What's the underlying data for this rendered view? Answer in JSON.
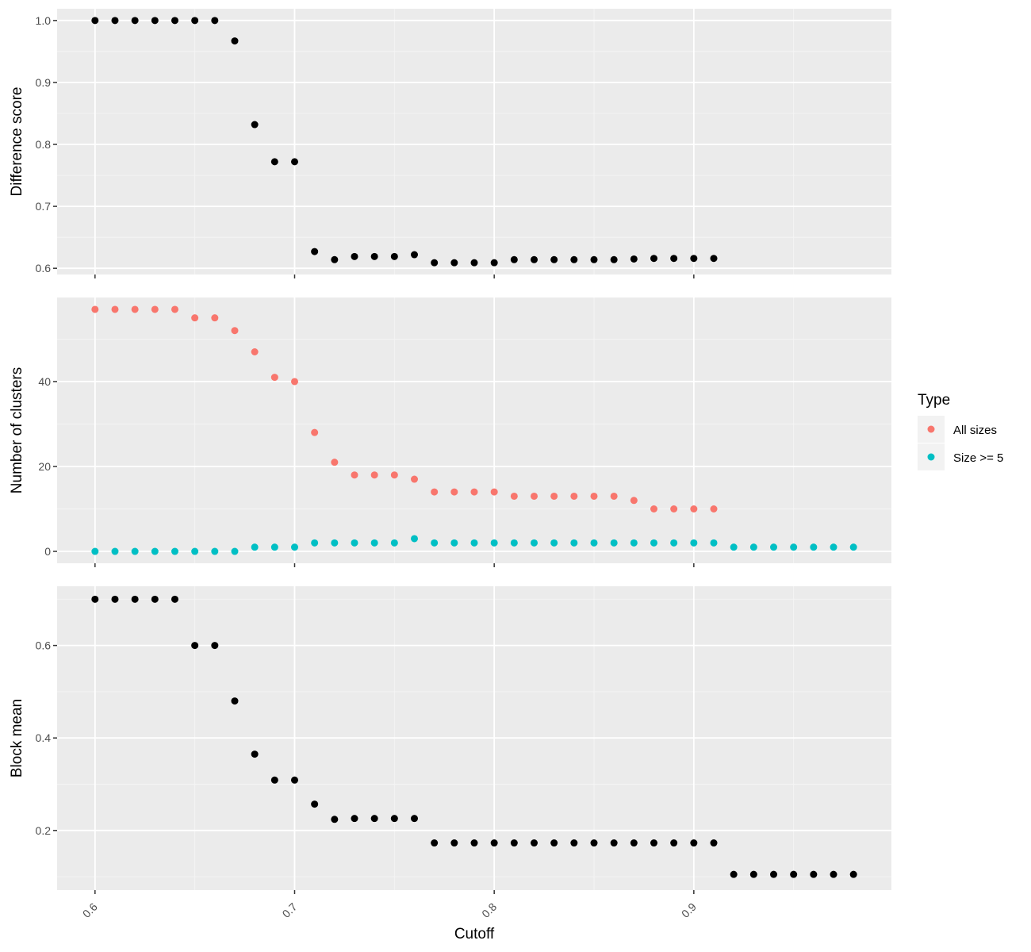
{
  "chart_data": [
    {
      "type": "scatter",
      "ylabel": "Difference score",
      "xlim": [
        0.581,
        0.999
      ],
      "ylim": [
        0.59,
        1.019
      ],
      "yticks": [
        0.6,
        0.7,
        0.8,
        0.9,
        1.0
      ],
      "ytick_labels": [
        "0.6",
        "0.7",
        "0.8",
        "0.9",
        "1.0"
      ],
      "series": [
        {
          "color": "#000000",
          "x": [
            0.6,
            0.61,
            0.62,
            0.63,
            0.64,
            0.65,
            0.66,
            0.67,
            0.68,
            0.69,
            0.7,
            0.71,
            0.72,
            0.73,
            0.74,
            0.75,
            0.76,
            0.77,
            0.78,
            0.79,
            0.8,
            0.81,
            0.82,
            0.83,
            0.84,
            0.85,
            0.86,
            0.87,
            0.88,
            0.89,
            0.9,
            0.91
          ],
          "y": [
            1.0,
            1.0,
            1.0,
            1.0,
            1.0,
            1.0,
            1.0,
            0.967,
            0.832,
            0.772,
            0.772,
            0.627,
            0.614,
            0.619,
            0.619,
            0.619,
            0.622,
            0.609,
            0.609,
            0.609,
            0.609,
            0.614,
            0.614,
            0.614,
            0.614,
            0.614,
            0.614,
            0.615,
            0.616,
            0.616,
            0.616,
            0.616
          ]
        }
      ]
    },
    {
      "type": "scatter",
      "ylabel": "Number of clusters",
      "xlim": [
        0.581,
        0.999
      ],
      "ylim": [
        -2.8,
        59.8
      ],
      "yticks": [
        0,
        20,
        40
      ],
      "ytick_labels": [
        "0",
        "20",
        "40"
      ],
      "legend": {
        "title": "Type",
        "position": "right"
      },
      "series": [
        {
          "name": "All sizes",
          "color": "#F8766D",
          "x": [
            0.6,
            0.61,
            0.62,
            0.63,
            0.64,
            0.65,
            0.66,
            0.67,
            0.68,
            0.69,
            0.7,
            0.71,
            0.72,
            0.73,
            0.74,
            0.75,
            0.76,
            0.77,
            0.78,
            0.79,
            0.8,
            0.81,
            0.82,
            0.83,
            0.84,
            0.85,
            0.86,
            0.87,
            0.88,
            0.89,
            0.9,
            0.91
          ],
          "y": [
            57,
            57,
            57,
            57,
            57,
            55,
            55,
            52,
            47,
            41,
            40,
            28,
            21,
            18,
            18,
            18,
            17,
            14,
            14,
            14,
            14,
            13,
            13,
            13,
            13,
            13,
            13,
            12,
            10,
            10,
            10,
            10
          ]
        },
        {
          "name": "Size >= 5",
          "color": "#00BFC4",
          "x": [
            0.6,
            0.61,
            0.62,
            0.63,
            0.64,
            0.65,
            0.66,
            0.67,
            0.68,
            0.69,
            0.7,
            0.71,
            0.72,
            0.73,
            0.74,
            0.75,
            0.76,
            0.77,
            0.78,
            0.79,
            0.8,
            0.81,
            0.82,
            0.83,
            0.84,
            0.85,
            0.86,
            0.87,
            0.88,
            0.89,
            0.9,
            0.91,
            0.92,
            0.93,
            0.94,
            0.95,
            0.96,
            0.97,
            0.98
          ],
          "y": [
            0,
            0,
            0,
            0,
            0,
            0,
            0,
            0,
            1,
            1,
            1,
            2,
            2,
            2,
            2,
            2,
            3,
            2,
            2,
            2,
            2,
            2,
            2,
            2,
            2,
            2,
            2,
            2,
            2,
            2,
            2,
            2,
            1,
            1,
            1,
            1,
            1,
            1,
            1
          ]
        }
      ]
    },
    {
      "type": "scatter",
      "ylabel": "Block mean",
      "xlabel": "Cutoff",
      "xlim": [
        0.581,
        0.999
      ],
      "ylim": [
        0.071,
        0.728
      ],
      "yticks": [
        0.2,
        0.4,
        0.6
      ],
      "ytick_labels": [
        "0.2",
        "0.4",
        "0.6"
      ],
      "xticks": [
        0.6,
        0.7,
        0.8,
        0.9
      ],
      "xtick_labels": [
        "0.6",
        "0.7",
        "0.8",
        "0.9"
      ],
      "series": [
        {
          "color": "#000000",
          "x": [
            0.6,
            0.61,
            0.62,
            0.63,
            0.64,
            0.65,
            0.66,
            0.67,
            0.68,
            0.69,
            0.7,
            0.71,
            0.72,
            0.73,
            0.74,
            0.75,
            0.76,
            0.77,
            0.78,
            0.79,
            0.8,
            0.81,
            0.82,
            0.83,
            0.84,
            0.85,
            0.86,
            0.87,
            0.88,
            0.89,
            0.9,
            0.91,
            0.92,
            0.93,
            0.94,
            0.95,
            0.96,
            0.97,
            0.98
          ],
          "y": [
            0.7,
            0.7,
            0.7,
            0.7,
            0.7,
            0.6,
            0.6,
            0.48,
            0.365,
            0.309,
            0.309,
            0.257,
            0.224,
            0.226,
            0.226,
            0.226,
            0.226,
            0.173,
            0.173,
            0.173,
            0.173,
            0.173,
            0.173,
            0.173,
            0.173,
            0.173,
            0.173,
            0.173,
            0.173,
            0.173,
            0.173,
            0.173,
            0.105,
            0.105,
            0.105,
            0.105,
            0.105,
            0.105,
            0.105
          ]
        }
      ]
    }
  ],
  "x_title": "Cutoff",
  "legend": {
    "title": "Type",
    "items": [
      {
        "label": "All sizes",
        "color": "#F8766D"
      },
      {
        "label": "Size >= 5",
        "color": "#00BFC4"
      }
    ]
  },
  "colors": {
    "panel_background": "#EBEBEB",
    "grid_major": "#FFFFFF",
    "grid_minor": "#F5F5F5",
    "tick_text": "#4D4D4D",
    "tick_mark": "#333333"
  }
}
